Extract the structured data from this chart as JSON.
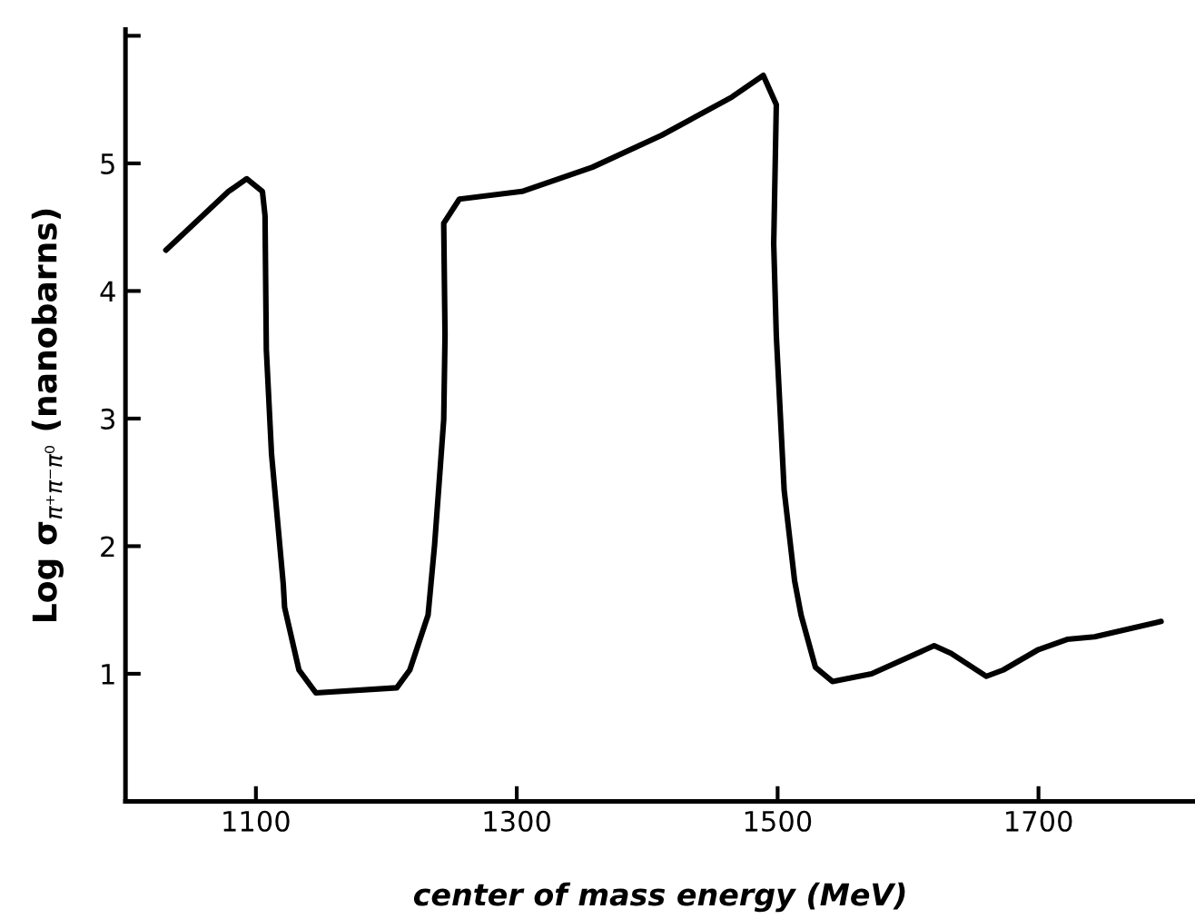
{
  "chart_data": {
    "type": "line",
    "xlabel": "center of mass energy (MeV)",
    "ylabel": "Log σ$_{π⁺π⁻π⁰}$ (nanobarns)",
    "series": [
      {
        "color": "#000000",
        "x": [
          1031,
          1079,
          1093,
          1105,
          1107,
          1108,
          1112,
          1121,
          1122,
          1133,
          1146,
          1208,
          1218,
          1232,
          1237,
          1244,
          1245,
          1244,
          1256,
          1304,
          1358,
          1411,
          1465,
          1489,
          1499,
          1497,
          1499,
          1505,
          1513,
          1518,
          1529,
          1542,
          1572,
          1620,
          1633,
          1660,
          1673,
          1700,
          1722,
          1743,
          1794
        ],
        "values": [
          4.32,
          4.78,
          4.88,
          4.78,
          4.59,
          3.54,
          2.72,
          1.7,
          1.52,
          1.03,
          0.85,
          0.89,
          1.03,
          1.46,
          2.01,
          2.99,
          3.65,
          4.53,
          4.72,
          4.78,
          4.97,
          5.22,
          5.52,
          5.69,
          5.46,
          4.37,
          3.65,
          2.44,
          1.73,
          1.46,
          1.05,
          0.94,
          1.0,
          1.22,
          1.16,
          0.98,
          1.03,
          1.19,
          1.27,
          1.29,
          1.41
        ]
      }
    ],
    "xlim": [
      1000,
      1820
    ],
    "ylim": [
      0,
      6.05
    ],
    "xticks": [
      1100,
      1300,
      1500,
      1700
    ],
    "yticks": [
      1,
      2,
      3,
      4,
      5,
      {
        "value": 6,
        "label": null
      }
    ],
    "grid": false,
    "legend": false,
    "marker": "none",
    "line_style": "solid"
  }
}
